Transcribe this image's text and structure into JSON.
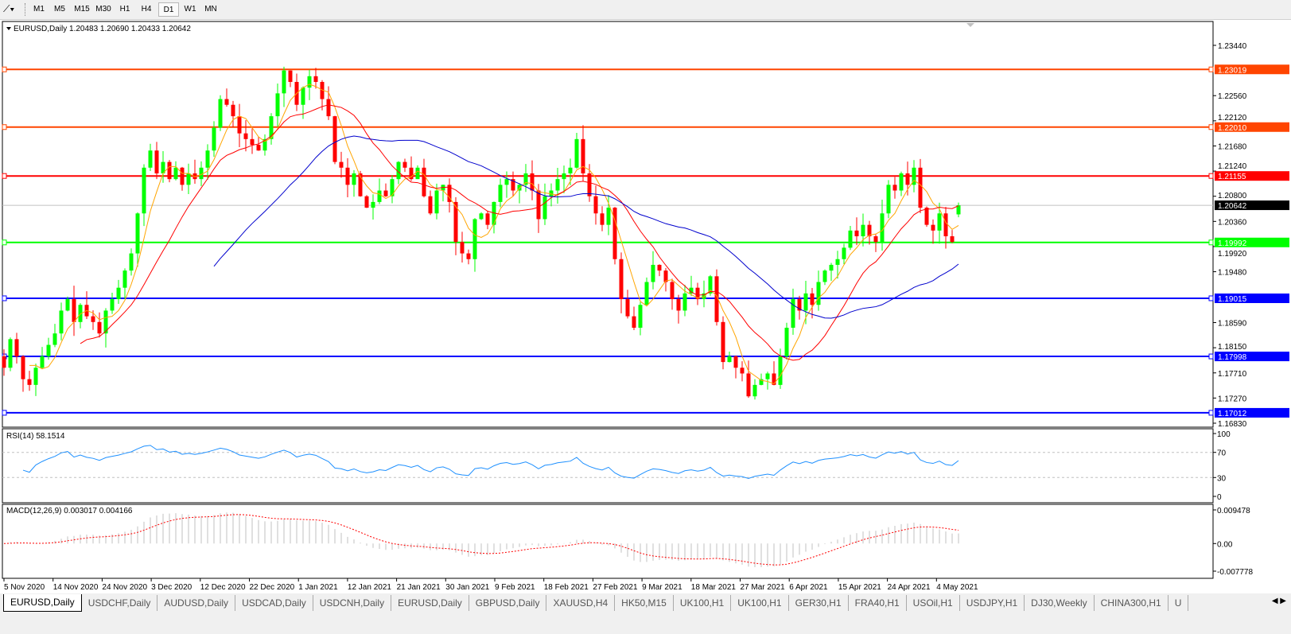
{
  "toolbar": {
    "timeframes": [
      "M1",
      "M5",
      "M15",
      "M30",
      "H1",
      "H4",
      "D1",
      "W1",
      "MN"
    ],
    "active": "D1"
  },
  "chart": {
    "header": "EURUSD,Daily  1.20483 1.20690 1.20433 1.20642",
    "current_price": "1.20642",
    "price_ticks": [
      "1.23440",
      "1.22560",
      "1.22120",
      "1.21680",
      "1.21240",
      "1.20800",
      "1.20360",
      "1.19920",
      "1.19480",
      "1.18590",
      "1.18150",
      "1.17710",
      "1.17270",
      "1.16830"
    ],
    "levels": [
      {
        "label": "1.23019",
        "color": "#ff4500"
      },
      {
        "label": "1.22010",
        "color": "#ff4500"
      },
      {
        "label": "1.21155",
        "color": "#ff0000"
      },
      {
        "label": "1.19992",
        "color": "#00ff00"
      },
      {
        "label": "1.19015",
        "color": "#0000ff"
      },
      {
        "label": "1.17998",
        "color": "#0000ff"
      },
      {
        "label": "1.17012",
        "color": "#0000ff"
      }
    ],
    "colors": {
      "bull": "#00ff00",
      "bear": "#ff0000",
      "ma_fast": "#ffa500",
      "ma_mid": "#ff0000",
      "ma_slow": "#0000cd",
      "rsi": "#1e90ff",
      "macd_signal": "#ff0000",
      "macd_hist": "#c0c0c0"
    },
    "closes": [
      1.178,
      1.183,
      1.18,
      1.176,
      1.175,
      1.178,
      1.18,
      1.182,
      1.184,
      1.188,
      1.19,
      1.186,
      1.189,
      1.187,
      1.186,
      1.184,
      1.188,
      1.19,
      1.192,
      1.195,
      1.198,
      1.205,
      1.213,
      1.216,
      1.212,
      1.214,
      1.211,
      1.213,
      1.21,
      1.212,
      1.211,
      1.213,
      1.216,
      1.22,
      1.225,
      1.224,
      1.222,
      1.219,
      1.218,
      1.217,
      1.216,
      1.218,
      1.222,
      1.226,
      1.23,
      1.228,
      1.224,
      1.227,
      1.229,
      1.228,
      1.225,
      1.222,
      1.214,
      1.213,
      1.21,
      1.212,
      1.208,
      1.206,
      1.207,
      1.209,
      1.208,
      1.211,
      1.214,
      1.213,
      1.211,
      1.213,
      1.208,
      1.205,
      1.209,
      1.21,
      1.207,
      1.2,
      1.198,
      1.197,
      1.204,
      1.205,
      1.203,
      1.207,
      1.21,
      1.211,
      1.209,
      1.21,
      1.212,
      1.209,
      1.204,
      1.208,
      1.209,
      1.211,
      1.212,
      1.213,
      1.218,
      1.212,
      1.208,
      1.205,
      1.203,
      1.206,
      1.197,
      1.19,
      1.187,
      1.185,
      1.189,
      1.193,
      1.196,
      1.195,
      1.193,
      1.19,
      1.188,
      1.191,
      1.192,
      1.19,
      1.191,
      1.194,
      1.186,
      1.179,
      1.18,
      1.178,
      1.177,
      1.173,
      1.175,
      1.176,
      1.177,
      1.175,
      1.18,
      1.185,
      1.19,
      1.188,
      1.191,
      1.189,
      1.193,
      1.195,
      1.196,
      1.197,
      1.199,
      1.202,
      1.201,
      1.203,
      1.201,
      1.2,
      1.205,
      1.21,
      1.209,
      1.212,
      1.21,
      1.213,
      1.206,
      1.203,
      1.202,
      1.205,
      1.201,
      1.2,
      1.20642
    ],
    "first_open": 1.18,
    "last_bar": {
      "open": 1.20483,
      "high": 1.2069,
      "low": 1.20433,
      "close": 1.20642
    }
  },
  "rsi": {
    "label": "RSI(14) 58.1514",
    "ticks": [
      "100",
      "70",
      "30",
      "0"
    ]
  },
  "macd": {
    "label": "MACD(12,26,9) 0.003017 0.004166",
    "ticks": [
      "0.009478",
      "0.00",
      "-0.007778"
    ]
  },
  "dates": [
    "5 Nov 2020",
    "14 Nov 2020",
    "24 Nov 2020",
    "3 Dec 2020",
    "12 Dec 2020",
    "22 Dec 2020",
    "1 Jan 2021",
    "12 Jan 2021",
    "21 Jan 2021",
    "30 Jan 2021",
    "9 Feb 2021",
    "18 Feb 2021",
    "27 Feb 2021",
    "9 Mar 2021",
    "18 Mar 2021",
    "27 Mar 2021",
    "6 Apr 2021",
    "15 Apr 2021",
    "24 Apr 2021",
    "4 May 2021"
  ],
  "tabs": [
    "EURUSD,Daily",
    "USDCHF,Daily",
    "AUDUSD,Daily",
    "USDCAD,Daily",
    "USDCNH,Daily",
    "EURUSD,Daily",
    "GBPUSD,Daily",
    "XAUUSD,H4",
    "HK50,M15",
    "UK100,H1",
    "UK100,H1",
    "GER30,H1",
    "FRA40,H1",
    "USOil,H1",
    "USDJPY,H1",
    "DJ30,Weekly",
    "CHINA300,H1",
    "U"
  ],
  "active_tab": 0
}
